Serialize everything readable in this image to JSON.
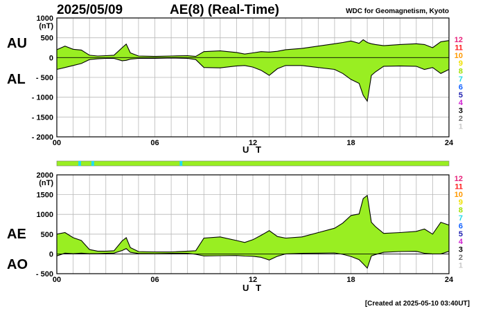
{
  "header": {
    "date": "2025/05/09",
    "title": "AE(8)  (Real-Time)",
    "source": "WDC for Geomagnetism, Kyoto"
  },
  "footer": {
    "created": "[Created at 2025-05-10 03:40UT]"
  },
  "legend_levels": [
    {
      "label": "12",
      "color": "#e8207a"
    },
    {
      "label": "11",
      "color": "#ff1a1a"
    },
    {
      "label": "10",
      "color": "#ff9900"
    },
    {
      "label": "9",
      "color": "#f0e000"
    },
    {
      "label": "8",
      "color": "#a0e000"
    },
    {
      "label": "7",
      "color": "#22d8e8"
    },
    {
      "label": "6",
      "color": "#1060ff"
    },
    {
      "label": "5",
      "color": "#2020b0"
    },
    {
      "label": "4",
      "color": "#d020d0"
    },
    {
      "label": "3",
      "color": "#000000"
    },
    {
      "label": "2",
      "color": "#707070"
    },
    {
      "label": "1",
      "color": "#c8c8c8"
    }
  ],
  "station_bar": {
    "base_color": "#99ee22",
    "highlight_color": "#22ddee",
    "highlight_hours": [
      1.4,
      2.2,
      7.6
    ]
  },
  "chart_data": [
    {
      "type": "area",
      "panel": "AU/AL",
      "upper_label": "AU",
      "lower_label": "AL",
      "unit": "(nT)",
      "xlabel": "U T",
      "xlim": [
        0,
        24
      ],
      "ylim": [
        -2000,
        1000
      ],
      "yticks": [
        "1000",
        "500",
        "0",
        "- 500",
        "- 1000",
        "- 1500",
        "- 2000"
      ],
      "ytick_values": [
        1000,
        500,
        0,
        -500,
        -1000,
        -1500,
        -2000
      ],
      "xticks": [
        "00",
        "06",
        "12",
        "18",
        "24"
      ],
      "xtick_values": [
        0,
        6,
        12,
        18,
        24
      ],
      "fill_color": "#99ee22",
      "x": [
        0,
        0.5,
        1,
        1.5,
        2,
        2.5,
        3,
        3.5,
        4,
        4.25,
        4.5,
        5,
        6,
        7,
        8,
        8.5,
        9,
        10,
        11,
        11.5,
        12,
        12.5,
        13,
        13.5,
        14,
        15,
        16,
        17,
        17.5,
        18,
        18.5,
        18.75,
        19,
        19.25,
        19.5,
        20,
        21,
        22,
        22.5,
        23,
        23.5,
        24
      ],
      "series": [
        {
          "name": "AU",
          "values": [
            200,
            290,
            210,
            190,
            60,
            40,
            50,
            60,
            250,
            340,
            120,
            40,
            30,
            40,
            50,
            30,
            150,
            170,
            130,
            90,
            120,
            150,
            140,
            160,
            200,
            230,
            290,
            350,
            380,
            420,
            360,
            450,
            380,
            350,
            330,
            300,
            330,
            350,
            330,
            250,
            400,
            430
          ]
        },
        {
          "name": "AL",
          "values": [
            -300,
            -250,
            -200,
            -150,
            -50,
            -30,
            -20,
            -20,
            -80,
            -70,
            -40,
            -20,
            -20,
            -10,
            -20,
            -50,
            -250,
            -260,
            -210,
            -200,
            -240,
            -320,
            -450,
            -280,
            -200,
            -200,
            -250,
            -300,
            -400,
            -550,
            -650,
            -950,
            -1100,
            -450,
            -360,
            -220,
            -210,
            -220,
            -300,
            -250,
            -400,
            -300
          ]
        }
      ]
    },
    {
      "type": "area",
      "panel": "AE/AO",
      "upper_label": "AE",
      "lower_label": "AO",
      "unit": "(nT)",
      "xlabel": "U T",
      "xlim": [
        0,
        24
      ],
      "ylim": [
        -500,
        2000
      ],
      "yticks": [
        "2000",
        "1500",
        "1000",
        "500",
        "0",
        "- 500"
      ],
      "ytick_values": [
        2000,
        1500,
        1000,
        500,
        0,
        -500
      ],
      "xticks": [
        "00",
        "06",
        "12",
        "18",
        "24"
      ],
      "xtick_values": [
        0,
        6,
        12,
        18,
        24
      ],
      "fill_color": "#99ee22",
      "x": [
        0,
        0.5,
        1,
        1.5,
        2,
        2.5,
        3,
        3.5,
        4,
        4.25,
        4.5,
        5,
        6,
        7,
        8,
        8.5,
        9,
        10,
        11,
        11.5,
        12,
        12.5,
        13,
        13.5,
        14,
        15,
        16,
        17,
        17.5,
        18,
        18.5,
        18.75,
        19,
        19.25,
        19.5,
        20,
        21,
        22,
        22.5,
        23,
        23.5,
        24
      ],
      "series": [
        {
          "name": "AE",
          "values": [
            500,
            540,
            410,
            340,
            110,
            70,
            70,
            80,
            330,
            410,
            160,
            60,
            50,
            50,
            70,
            80,
            400,
            430,
            340,
            290,
            360,
            470,
            590,
            440,
            400,
            430,
            540,
            650,
            780,
            970,
            1010,
            1400,
            1480,
            800,
            690,
            520,
            540,
            570,
            630,
            500,
            800,
            730
          ]
        },
        {
          "name": "AO",
          "values": [
            -50,
            20,
            5,
            20,
            5,
            5,
            15,
            20,
            85,
            135,
            40,
            10,
            5,
            15,
            15,
            -10,
            -50,
            -45,
            -40,
            -55,
            -60,
            -85,
            -155,
            -60,
            0,
            15,
            20,
            25,
            -10,
            -65,
            -145,
            -250,
            -360,
            -50,
            -15,
            40,
            60,
            65,
            15,
            0,
            0,
            65
          ]
        }
      ]
    }
  ]
}
